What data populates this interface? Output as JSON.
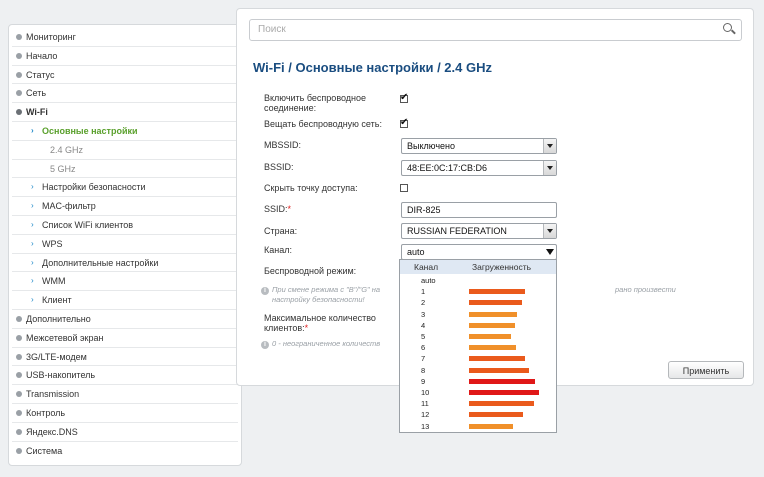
{
  "sidebar": {
    "items": [
      {
        "label": "Мониторинг"
      },
      {
        "label": "Начало"
      },
      {
        "label": "Статус"
      },
      {
        "label": "Сеть"
      },
      {
        "label": "Wi-Fi"
      },
      {
        "label": "Основные настройки"
      },
      {
        "label": "2.4 GHz"
      },
      {
        "label": "5 GHz"
      },
      {
        "label": "Настройки безопасности"
      },
      {
        "label": "MAC-фильтр"
      },
      {
        "label": "Список WiFi клиентов"
      },
      {
        "label": "WPS"
      },
      {
        "label": "Дополнительные настройки"
      },
      {
        "label": "WMM"
      },
      {
        "label": "Клиент"
      },
      {
        "label": "Дополнительно"
      },
      {
        "label": "Межсетевой экран"
      },
      {
        "label": "3G/LTE-модем"
      },
      {
        "label": "USB-накопитель"
      },
      {
        "label": "Transmission"
      },
      {
        "label": "Контроль"
      },
      {
        "label": "Яндекс.DNS"
      },
      {
        "label": "Система"
      }
    ]
  },
  "search": {
    "placeholder": "Поиск"
  },
  "page": {
    "title": "Wi-Fi /  Основные настройки /  2.4 GHz"
  },
  "form": {
    "enable_label": "Включить беспроводное соединение:",
    "broadcast_label": "Вещать беспроводную сеть:",
    "mbssid_label": "MBSSID:",
    "mbssid_value": "Выключено",
    "bssid_label": "BSSID:",
    "bssid_value": "48:EE:0C:17:CB:D6",
    "hide_label": "Скрыть точку доступа:",
    "ssid_label": "SSID:",
    "ssid_required": "*",
    "ssid_value": "DIR-825",
    "country_label": "Страна:",
    "country_value": "RUSSIAN FEDERATION",
    "channel_label": "Канал:",
    "channel_value": "auto",
    "mode_label": "Беспроводной режим:",
    "mode_hint_start": "При смене режима с \"B\"/\"G\" на",
    "mode_hint_end": "рано произвести",
    "mode_hint_line2": "настройку безопасности!",
    "max_clients_label": "Максимальное количество клиентов:",
    "max_clients_required": "*",
    "max_clients_hint": "0 - неограниченное количеств",
    "apply_label": "Применить"
  },
  "channel_dropdown": {
    "col_channel": "Канал",
    "col_load": "Загруженность",
    "options": [
      {
        "channel": "auto",
        "load": 0,
        "color": ""
      },
      {
        "channel": "1",
        "load": 0.8,
        "color": "#ea5a1c"
      },
      {
        "channel": "2",
        "load": 0.75,
        "color": "#ea5a1c"
      },
      {
        "channel": "3",
        "load": 0.68,
        "color": "#f0902a"
      },
      {
        "channel": "4",
        "load": 0.65,
        "color": "#f0902a"
      },
      {
        "channel": "5",
        "load": 0.6,
        "color": "#f0902a"
      },
      {
        "channel": "6",
        "load": 0.67,
        "color": "#f0902a"
      },
      {
        "channel": "7",
        "load": 0.8,
        "color": "#ea5a1c"
      },
      {
        "channel": "8",
        "load": 0.86,
        "color": "#ea5a1c"
      },
      {
        "channel": "9",
        "load": 0.94,
        "color": "#e01818"
      },
      {
        "channel": "10",
        "load": 1.0,
        "color": "#e01818"
      },
      {
        "channel": "11",
        "load": 0.93,
        "color": "#ea5a1c"
      },
      {
        "channel": "12",
        "load": 0.77,
        "color": "#ea5a1c"
      },
      {
        "channel": "13",
        "load": 0.63,
        "color": "#f0902a"
      }
    ]
  }
}
